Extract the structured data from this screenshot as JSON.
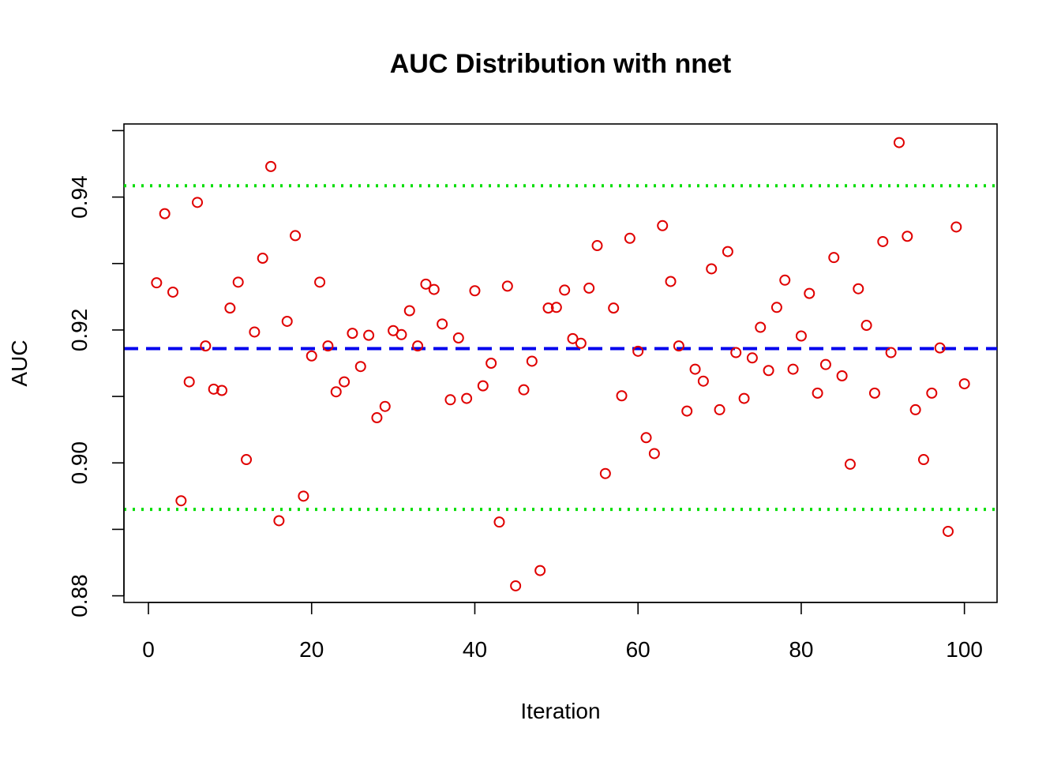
{
  "chart_data": {
    "type": "scatter",
    "title": "AUC Distribution with nnet",
    "xlabel": "Iteration",
    "ylabel": "AUC",
    "xlim": [
      -3,
      104
    ],
    "ylim": [
      0.879,
      0.951
    ],
    "xticks": [
      0,
      20,
      40,
      60,
      80,
      100
    ],
    "yticks": [
      0.88,
      0.9,
      0.92,
      0.94
    ],
    "ytick_labels": [
      "0.88",
      "0.90",
      "0.92",
      "0.94"
    ],
    "point_color": "#e00000",
    "x": [
      1,
      2,
      3,
      4,
      5,
      6,
      7,
      8,
      9,
      10,
      11,
      12,
      13,
      14,
      15,
      16,
      17,
      18,
      19,
      20,
      21,
      22,
      23,
      24,
      25,
      26,
      27,
      28,
      29,
      30,
      31,
      32,
      33,
      34,
      35,
      36,
      37,
      38,
      39,
      40,
      41,
      42,
      43,
      44,
      45,
      46,
      47,
      48,
      49,
      50,
      51,
      52,
      53,
      54,
      55,
      56,
      57,
      58,
      59,
      60,
      61,
      62,
      63,
      64,
      65,
      66,
      67,
      68,
      69,
      70,
      71,
      72,
      73,
      74,
      75,
      76,
      77,
      78,
      79,
      80,
      81,
      82,
      83,
      84,
      85,
      86,
      87,
      88,
      89,
      90,
      91,
      92,
      93,
      94,
      95,
      96,
      97,
      98,
      99,
      100
    ],
    "y": [
      0.9271,
      0.9375,
      0.9257,
      0.8943,
      0.9122,
      0.9392,
      0.9176,
      0.9111,
      0.9109,
      0.9233,
      0.9272,
      0.9005,
      0.9197,
      0.9308,
      0.9446,
      0.8913,
      0.9213,
      0.9342,
      0.895,
      0.9161,
      0.9272,
      0.9176,
      0.9107,
      0.9122,
      0.9195,
      0.9145,
      0.9192,
      0.9068,
      0.9085,
      0.9199,
      0.9193,
      0.9229,
      0.9176,
      0.9269,
      0.9261,
      0.9209,
      0.9095,
      0.9188,
      0.9097,
      0.9259,
      0.9116,
      0.915,
      0.8911,
      0.9266,
      0.8815,
      0.911,
      0.9153,
      0.8838,
      0.9233,
      0.9234,
      0.926,
      0.9187,
      0.918,
      0.9263,
      0.9327,
      0.8984,
      0.9233,
      0.9101,
      0.9338,
      0.9168,
      0.9038,
      0.9014,
      0.9357,
      0.9273,
      0.9176,
      0.9078,
      0.9141,
      0.9123,
      0.9292,
      0.908,
      0.9318,
      0.9166,
      0.9097,
      0.9158,
      0.9204,
      0.9139,
      0.9234,
      0.9275,
      0.9141,
      0.9191,
      0.9255,
      0.9105,
      0.9148,
      0.9309,
      0.9131,
      0.8998,
      0.9262,
      0.9207,
      0.9105,
      0.9333,
      0.9166,
      0.9482,
      0.9341,
      0.908,
      0.9005,
      0.9105,
      0.9173,
      0.8897,
      0.9355,
      0.9119
    ],
    "reference_lines": [
      {
        "value": 0.9417,
        "color": "#00dd00",
        "style": "dotted"
      },
      {
        "value": 0.9172,
        "color": "#0000ee",
        "style": "dashed"
      },
      {
        "value": 0.893,
        "color": "#00dd00",
        "style": "dotted"
      }
    ],
    "grid": false,
    "legend": "none"
  }
}
